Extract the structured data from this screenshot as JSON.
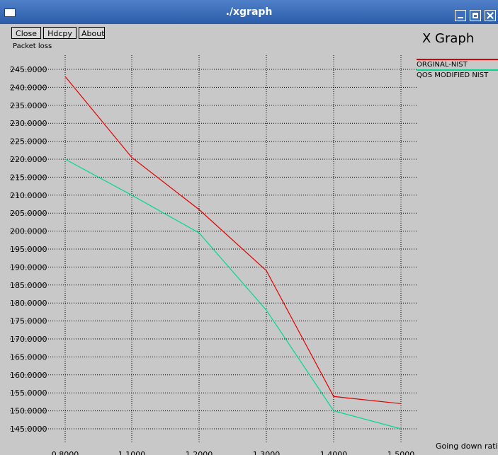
{
  "window": {
    "title": "./xgraph"
  },
  "toolbar": {
    "close_label": "Close",
    "hdcpy_label": "Hdcpy",
    "about_label": "About"
  },
  "graph": {
    "title": "X Graph",
    "y_unit": "Packet loss",
    "x_unit": "Going down ratio"
  },
  "colors": {
    "titlebar": "#3a6bb7",
    "background": "#c8c8c8",
    "series1": "#e00000",
    "series2": "#00d890"
  },
  "chart_data": {
    "type": "line",
    "title": "X Graph",
    "ylabel": "Packet loss",
    "xlabel": "Going down ratio",
    "xlim": [
      0.8,
      1.5
    ],
    "ylim": [
      145,
      245
    ],
    "grid": true,
    "legend_position": "top-right",
    "x_ticks": [
      "0.8000",
      "1.1000",
      "1.2000",
      "1.3000",
      "1.4000",
      "1.5000"
    ],
    "y_ticks": [
      "245.0000",
      "240.0000",
      "235.0000",
      "230.0000",
      "225.0000",
      "220.0000",
      "215.0000",
      "210.0000",
      "205.0000",
      "200.0000",
      "195.0000",
      "190.0000",
      "185.0000",
      "180.0000",
      "175.0000",
      "170.0000",
      "165.0000",
      "160.0000",
      "155.0000",
      "150.0000",
      "145.0000"
    ],
    "series": [
      {
        "name": "ORGINAL-NIST",
        "x": [
          0.8,
          1.0,
          1.1,
          1.3,
          1.4,
          1.5
        ],
        "y": [
          243,
          220.5,
          206,
          189,
          154,
          152
        ]
      },
      {
        "name": "QOS MODIFIED NIST",
        "x": [
          0.8,
          1.0,
          1.1,
          1.3,
          1.4,
          1.5
        ],
        "y": [
          220,
          210,
          199.5,
          178,
          150,
          145
        ]
      }
    ]
  }
}
